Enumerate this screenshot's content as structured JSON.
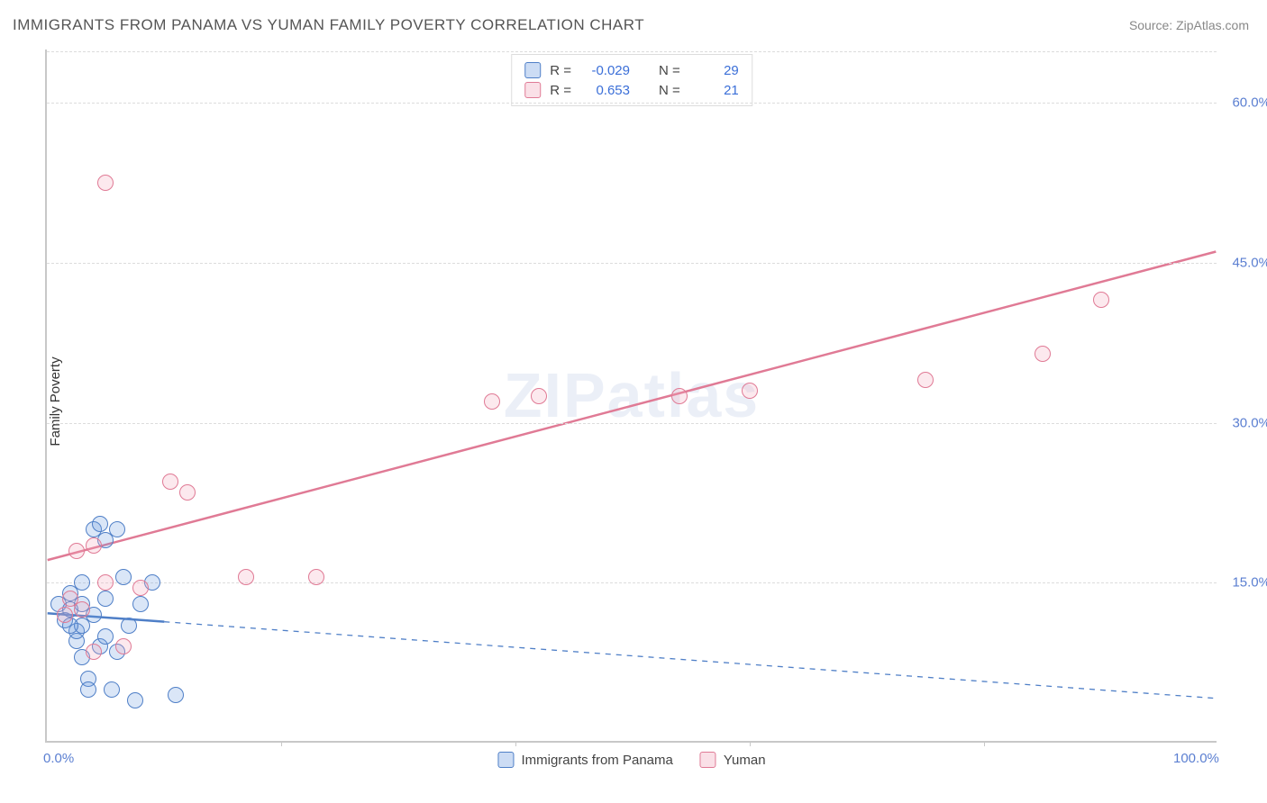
{
  "title": "IMMIGRANTS FROM PANAMA VS YUMAN FAMILY POVERTY CORRELATION CHART",
  "source_label": "Source: ",
  "source_name": "ZipAtlas.com",
  "watermark": "ZIPatlas",
  "ylabel": "Family Poverty",
  "chart": {
    "type": "scatter",
    "xlim": [
      0,
      100
    ],
    "ylim": [
      0,
      65
    ],
    "x_ticks": [
      {
        "value": 0,
        "label": "0.0%"
      },
      {
        "value": 100,
        "label": "100.0%"
      }
    ],
    "y_ticks": [
      {
        "value": 15,
        "label": "15.0%"
      },
      {
        "value": 30,
        "label": "30.0%"
      },
      {
        "value": 45,
        "label": "45.0%"
      },
      {
        "value": 60,
        "label": "60.0%"
      }
    ],
    "x_vticks": [
      20,
      40,
      60,
      80
    ],
    "background_color": "#ffffff",
    "grid_color": "#dcdcdc",
    "marker_radius": 9,
    "marker_fill_opacity": 0.25,
    "marker_stroke_width": 1.5,
    "series": [
      {
        "name": "Immigrants from Panama",
        "color": "#6c9ae0",
        "stroke": "#4f7fc7",
        "R": "-0.029",
        "N": "29",
        "trend": {
          "x1": 0,
          "y1": 12.0,
          "x2": 100,
          "y2": 4.0,
          "solid_until_x": 10,
          "width": 2.5
        },
        "points": [
          [
            1.0,
            13.0
          ],
          [
            1.5,
            11.5
          ],
          [
            2.0,
            12.5
          ],
          [
            2.0,
            14.0
          ],
          [
            2.5,
            9.5
          ],
          [
            2.5,
            10.5
          ],
          [
            3.0,
            8.0
          ],
          [
            3.0,
            11.0
          ],
          [
            3.0,
            15.0
          ],
          [
            3.5,
            6.0
          ],
          [
            3.5,
            5.0
          ],
          [
            4.0,
            12.0
          ],
          [
            4.0,
            20.0
          ],
          [
            4.5,
            20.5
          ],
          [
            4.5,
            9.0
          ],
          [
            5.0,
            10.0
          ],
          [
            5.0,
            19.0
          ],
          [
            5.5,
            5.0
          ],
          [
            6.0,
            20.0
          ],
          [
            6.0,
            8.5
          ],
          [
            6.5,
            15.5
          ],
          [
            7.0,
            11.0
          ],
          [
            7.5,
            4.0
          ],
          [
            8.0,
            13.0
          ],
          [
            9.0,
            15.0
          ],
          [
            11.0,
            4.5
          ],
          [
            3.0,
            13.0
          ],
          [
            2.0,
            11.0
          ],
          [
            5.0,
            13.5
          ]
        ]
      },
      {
        "name": "Yuman",
        "color": "#f2a6ba",
        "stroke": "#e07a95",
        "R": "0.653",
        "N": "21",
        "trend": {
          "x1": 0,
          "y1": 17.0,
          "x2": 100,
          "y2": 46.0,
          "solid_until_x": 100,
          "width": 2.5
        },
        "points": [
          [
            1.5,
            12.0
          ],
          [
            2.0,
            13.5
          ],
          [
            2.5,
            18.0
          ],
          [
            3.0,
            12.5
          ],
          [
            4.0,
            18.5
          ],
          [
            4.0,
            8.5
          ],
          [
            5.0,
            15.0
          ],
          [
            5.0,
            52.5
          ],
          [
            6.5,
            9.0
          ],
          [
            8.0,
            14.5
          ],
          [
            10.5,
            24.5
          ],
          [
            12.0,
            23.5
          ],
          [
            17.0,
            15.5
          ],
          [
            23.0,
            15.5
          ],
          [
            38.0,
            32.0
          ],
          [
            42.0,
            32.5
          ],
          [
            54.0,
            32.5
          ],
          [
            60.0,
            33.0
          ],
          [
            75.0,
            34.0
          ],
          [
            85.0,
            36.5
          ],
          [
            90.0,
            41.5
          ]
        ]
      }
    ]
  },
  "legend_top": {
    "R_label": "R =",
    "N_label": "N ="
  }
}
